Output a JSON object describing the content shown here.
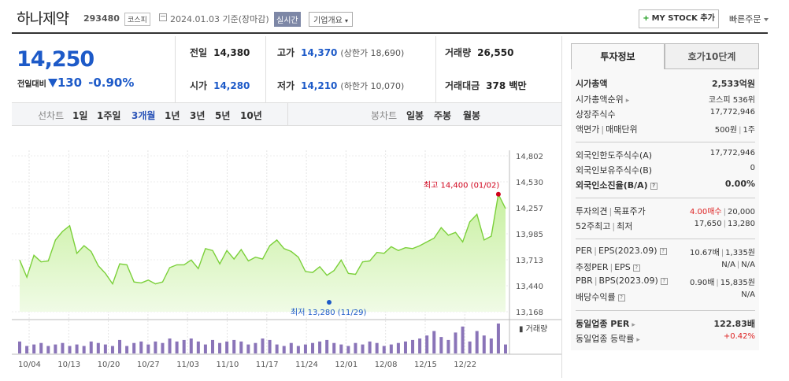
{
  "header": {
    "name": "하나제약",
    "code": "293480",
    "market": "코스피",
    "date": "2024.01.03",
    "basis": "기준(장마감)",
    "live_badge": "실시간",
    "company_info": "기업개요",
    "mystock": "MY STOCK 추가",
    "quick_order": "빠른주문"
  },
  "price": {
    "current": "14,250",
    "change_label": "전일대비",
    "change": "130",
    "change_pct": "-0.90%"
  },
  "stats": {
    "prev_label": "전일",
    "prev": "14,380",
    "open_label": "시가",
    "open": "14,280",
    "high_label": "고가",
    "high": "14,370",
    "upper_limit": "(상한가 18,690)",
    "low_label": "저가",
    "low": "14,210",
    "lower_limit": "(하한가 10,070)",
    "volume_label": "거래량",
    "volume": "26,550",
    "amount_label": "거래대금",
    "amount": "378 백만"
  },
  "chart_bar": {
    "line_label": "선차트",
    "periods": [
      "1일",
      "1주일",
      "3개월",
      "1년",
      "3년",
      "5년",
      "10년"
    ],
    "selected_period": "3개월",
    "candle_label": "봉차트",
    "candles": [
      "일봉",
      "주봉",
      "월봉"
    ]
  },
  "chart_data": {
    "type": "area",
    "x_ticks": [
      "10/04",
      "10/13",
      "10/20",
      "10/27",
      "11/03",
      "11/10",
      "11/17",
      "11/24",
      "12/01",
      "12/08",
      "12/15",
      "12/22"
    ],
    "y_ticks": [
      "14,802",
      "14,530",
      "14,257",
      "13,985",
      "13,713",
      "13,440",
      "13,168"
    ],
    "ylim": [
      13168,
      14802
    ],
    "values": [
      13710,
      13530,
      13760,
      13690,
      13700,
      13920,
      14010,
      14070,
      13780,
      13860,
      13800,
      13650,
      13570,
      13460,
      13670,
      13660,
      13480,
      13470,
      13500,
      13460,
      13480,
      13630,
      13660,
      13660,
      13710,
      13620,
      13830,
      13810,
      13670,
      13810,
      13720,
      13820,
      13700,
      13740,
      13720,
      13860,
      13920,
      13830,
      13800,
      13740,
      13590,
      13580,
      13640,
      13550,
      13600,
      13710,
      13570,
      13560,
      13690,
      13700,
      13790,
      13780,
      13850,
      13810,
      13840,
      13830,
      13860,
      13900,
      13940,
      14050,
      13970,
      14000,
      13900,
      14110,
      14190,
      13920,
      13960,
      14400,
      14250
    ],
    "volume": [
      8,
      5,
      6,
      7,
      5,
      6,
      7,
      5,
      6,
      5,
      8,
      7,
      6,
      5,
      9,
      5,
      7,
      8,
      6,
      8,
      7,
      10,
      8,
      9,
      10,
      8,
      6,
      9,
      7,
      8,
      9,
      8,
      6,
      7,
      10,
      9,
      6,
      5,
      7,
      5,
      6,
      7,
      8,
      9,
      7,
      6,
      5,
      7,
      6,
      8,
      7,
      5,
      6,
      7,
      8,
      9,
      10,
      12,
      15,
      11,
      9,
      14,
      18,
      8,
      15,
      12,
      10,
      20,
      6
    ],
    "high_label": "최고 14,400 (01/02)",
    "low_label": "최저 13,280 (11/29)",
    "volume_label": "거래량",
    "colors": {
      "line": "#7bd03a",
      "fill_top": "#c8f0a0",
      "fill_bottom": "#f0fbe6",
      "volume": "#8a74b8",
      "high": "#d0021b",
      "low": "#1d5ac8"
    }
  },
  "side": {
    "tab_invest": "투자정보",
    "tab_hoga": "호가10단계",
    "market_cap_label": "시가총액",
    "market_cap": "2,533억원",
    "cap_rank_label": "시가총액순위",
    "cap_rank": "코스피 536위",
    "shares_label": "상장주식수",
    "shares": "17,772,946",
    "face_label": "액면가",
    "trade_unit_label": "매매단위",
    "face_value": "500원",
    "trade_unit": "1주",
    "foreign_limit_label": "외국인한도주식수(A)",
    "foreign_limit": "17,772,946",
    "foreign_hold_label": "외국인보유주식수(B)",
    "foreign_hold": "0",
    "foreign_ratio_label": "외국인소진율(B/A)",
    "foreign_ratio": "0.00%",
    "opinion_label": "투자의견",
    "target_label": "목표주가",
    "opinion": "4.00매수",
    "target": "20,000",
    "week52_label": "52주최고",
    "week52_low_label": "최저",
    "week52_high": "17,650",
    "week52_low": "13,280",
    "per_label": "PER",
    "eps_label": "EPS(2023.09)",
    "per": "10.67배",
    "eps": "1,335원",
    "est_per_label": "추정PER",
    "est_eps_label": "EPS",
    "est_per": "N/A",
    "est_eps": "N/A",
    "pbr_label": "PBR",
    "bps_label": "BPS(2023.09)",
    "pbr": "0.90배",
    "bps": "15,835원",
    "dividend_label": "배당수익률",
    "dividend": "N/A",
    "sector_per_label": "동일업종 PER",
    "sector_per": "122.83배",
    "sector_rate_label": "동일업종 등락률",
    "sector_rate": "+0.42%"
  }
}
